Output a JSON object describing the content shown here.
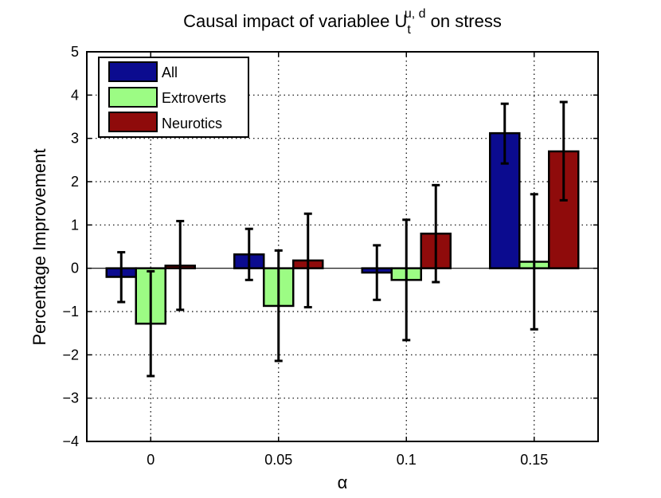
{
  "chart_data": {
    "type": "bar",
    "title": {
      "prefix": "Causal impact of variablee U",
      "superscript": "u, d",
      "subscript": "t",
      "suffix": " on stress"
    },
    "xlabel": "α",
    "ylabel": "Percentage Improvement",
    "categories": [
      "0",
      "0.05",
      "0.1",
      "0.15"
    ],
    "ylim": [
      -4,
      5
    ],
    "yticks": [
      -4,
      -3,
      -2,
      -1,
      0,
      1,
      2,
      3,
      4,
      5
    ],
    "ytick_labels": [
      "−4",
      "−3",
      "−2",
      "−1",
      "0",
      "1",
      "2",
      "3",
      "4",
      "5"
    ],
    "grid": true,
    "legend_position": "top-left",
    "series": [
      {
        "name": "All",
        "color": "#0b0b8f",
        "values": [
          -0.2,
          0.32,
          -0.1,
          3.12
        ],
        "error_low": [
          -0.78,
          -0.27,
          -0.73,
          2.42
        ],
        "error_high": [
          0.37,
          0.91,
          0.53,
          3.8
        ]
      },
      {
        "name": "Extroverts",
        "color": "#9cfc84",
        "values": [
          -1.28,
          -0.87,
          -0.27,
          0.15
        ],
        "error_low": [
          -2.49,
          -2.14,
          -1.66,
          -1.41
        ],
        "error_high": [
          -0.07,
          0.41,
          1.12,
          1.71
        ]
      },
      {
        "name": "Neurotics",
        "color": "#8f0b0b",
        "values": [
          0.06,
          0.18,
          0.8,
          2.7
        ],
        "error_low": [
          -0.96,
          -0.9,
          -0.32,
          1.57
        ],
        "error_high": [
          1.09,
          1.26,
          1.92,
          3.84
        ]
      }
    ]
  }
}
